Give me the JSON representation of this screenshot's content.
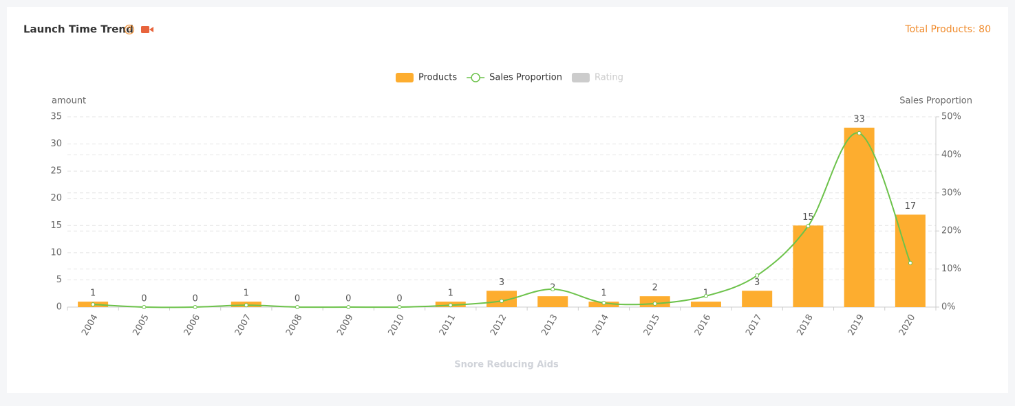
{
  "header": {
    "title": "Launch Time Trend",
    "total_label": "Total Products:",
    "total": 80
  },
  "chart_data": {
    "type": "bar",
    "categories": [
      "2004",
      "2005",
      "2006",
      "2007",
      "2008",
      "2009",
      "2010",
      "2011",
      "2012",
      "2013",
      "2014",
      "2015",
      "2016",
      "2017",
      "2018",
      "2019",
      "2020"
    ],
    "series": [
      {
        "name": "Products",
        "color": "#fdad2f",
        "values": [
          1,
          0,
          0,
          1,
          0,
          0,
          0,
          1,
          3,
          2,
          1,
          2,
          1,
          3,
          15,
          33,
          17
        ]
      },
      {
        "name": "Sales Proportion",
        "type": "line",
        "axis": "y2",
        "color": "#6cc24a",
        "values": [
          0.7,
          0,
          0,
          0.5,
          0,
          0,
          0,
          0.5,
          1.6,
          4.7,
          1.1,
          0.9,
          2.9,
          8.3,
          21.3,
          45.7,
          11.6
        ]
      },
      {
        "name": "Rating",
        "color": "#cccccc",
        "hidden": true
      }
    ],
    "ylabel": "amount",
    "y2label": "Sales Proportion",
    "xlabel": "Snore Reducing Aids",
    "ylim": [
      0,
      35
    ],
    "yticks": [
      0,
      5,
      10,
      15,
      20,
      25,
      30,
      35
    ],
    "y2lim": [
      0,
      50
    ],
    "y2ticks": [
      {
        "value": 0,
        "label": "0%"
      },
      {
        "value": 10,
        "label": "10%"
      },
      {
        "value": 20,
        "label": "20%"
      },
      {
        "value": 30,
        "label": "30%"
      },
      {
        "value": 40,
        "label": "40%"
      },
      {
        "value": 50,
        "label": "50%"
      }
    ],
    "grid": true
  }
}
